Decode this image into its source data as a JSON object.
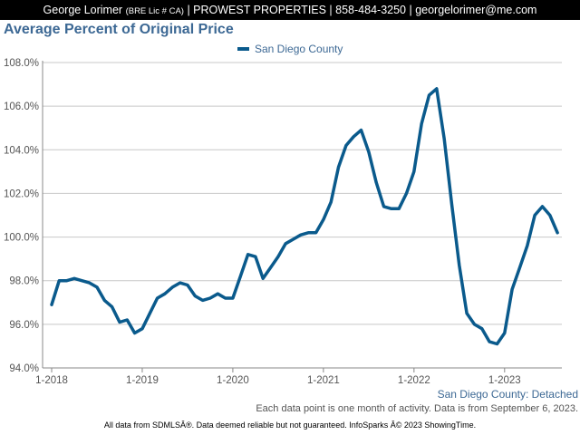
{
  "header": {
    "name": "George Lorimer",
    "license": "(BRE Lic # CA)",
    "rest": "| PROWEST PROPERTIES | 858-484-3250 | georgelorimer@me.com"
  },
  "chart_title": "Average Percent of Original Price",
  "subtitle": "San Diego County: Detached",
  "note": "Each data point is one month of activity. Data is from September 6, 2023.",
  "footer": "All data from SDMLSÂ®. Data deemed reliable but not guaranteed. InfoSparks Â© 2023 ShowingTime.",
  "colors": {
    "series": "#0a5a8c",
    "grid": "#c8c8c8",
    "title": "#3c6894"
  },
  "chart_data": {
    "type": "line",
    "title": "Average Percent of Original Price",
    "xlabel": "",
    "ylabel": "",
    "ylim": [
      94.0,
      108.0
    ],
    "y_ticks": [
      "94.0%",
      "96.0%",
      "98.0%",
      "100.0%",
      "102.0%",
      "104.0%",
      "106.0%",
      "108.0%"
    ],
    "x_ticks": [
      "1-2018",
      "1-2019",
      "1-2020",
      "1-2021",
      "1-2022",
      "1-2023"
    ],
    "grid": true,
    "legend_position": "top-center",
    "x": [
      "2018-01",
      "2018-02",
      "2018-03",
      "2018-04",
      "2018-05",
      "2018-06",
      "2018-07",
      "2018-08",
      "2018-09",
      "2018-10",
      "2018-11",
      "2018-12",
      "2019-01",
      "2019-02",
      "2019-03",
      "2019-04",
      "2019-05",
      "2019-06",
      "2019-07",
      "2019-08",
      "2019-09",
      "2019-10",
      "2019-11",
      "2019-12",
      "2020-01",
      "2020-02",
      "2020-03",
      "2020-04",
      "2020-05",
      "2020-06",
      "2020-07",
      "2020-08",
      "2020-09",
      "2020-10",
      "2020-11",
      "2020-12",
      "2021-01",
      "2021-02",
      "2021-03",
      "2021-04",
      "2021-05",
      "2021-06",
      "2021-07",
      "2021-08",
      "2021-09",
      "2021-10",
      "2021-11",
      "2021-12",
      "2022-01",
      "2022-02",
      "2022-03",
      "2022-04",
      "2022-05",
      "2022-06",
      "2022-07",
      "2022-08",
      "2022-09",
      "2022-10",
      "2022-11",
      "2022-12",
      "2023-01",
      "2023-02",
      "2023-03",
      "2023-04",
      "2023-05",
      "2023-06",
      "2023-07",
      "2023-08"
    ],
    "series": [
      {
        "name": "San Diego County",
        "values": [
          96.9,
          98.0,
          98.0,
          98.1,
          98.0,
          97.9,
          97.7,
          97.1,
          96.8,
          96.1,
          96.2,
          95.6,
          95.8,
          96.5,
          97.2,
          97.4,
          97.7,
          97.9,
          97.8,
          97.3,
          97.1,
          97.2,
          97.4,
          97.2,
          97.2,
          98.2,
          99.2,
          99.1,
          98.1,
          98.6,
          99.1,
          99.7,
          99.9,
          100.1,
          100.2,
          100.2,
          100.8,
          101.6,
          103.2,
          104.2,
          104.6,
          104.9,
          103.9,
          102.5,
          101.4,
          101.3,
          101.3,
          102.0,
          103.0,
          105.2,
          106.5,
          106.8,
          104.5,
          101.5,
          98.7,
          96.5,
          96.0,
          95.8,
          95.2,
          95.1,
          95.6,
          97.6,
          98.6,
          99.6,
          101.0,
          101.4,
          101.0,
          100.2
        ]
      }
    ]
  }
}
